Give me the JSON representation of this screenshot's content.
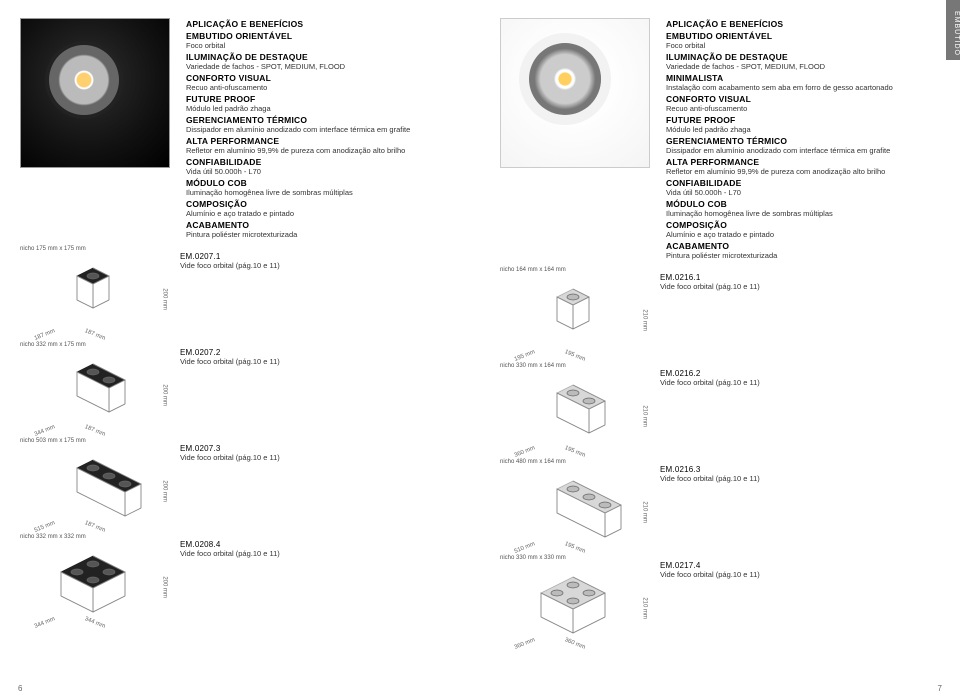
{
  "side_tab": "EMBUTIDO",
  "page_left_num": "6",
  "page_right_num": "7",
  "left": {
    "app_title": "APLICAÇÃO E BENEFÍCIOS",
    "specs": [
      {
        "h": "EMBUTIDO ORIENTÁVEL",
        "s": "Foco orbital"
      },
      {
        "h": "ILUMINAÇÃO DE DESTAQUE",
        "s": "Variedade de fachos - SPOT, MEDIUM, FLOOD"
      },
      {
        "h": "CONFORTO VISUAL",
        "s": "Recuo anti-ofuscamento"
      },
      {
        "h": "FUTURE PROOF",
        "s": "Módulo led padrão zhaga"
      },
      {
        "h": "GERENCIAMENTO TÉRMICO",
        "s": "Dissipador em alumínio anodizado com interface térmica em grafite"
      },
      {
        "h": "ALTA PERFORMANCE",
        "s": "Refletor em alumínio 99,9% de pureza com anodização alto brilho"
      },
      {
        "h": "CONFIABILIDADE",
        "s": "Vida útil 50.000h - L70"
      },
      {
        "h": "MÓDULO COB",
        "s": "Iluminação homogênea livre de sombras múltiplas"
      },
      {
        "h": "COMPOSIÇÃO",
        "s": "Alumínio e aço tratado e pintado"
      },
      {
        "h": "ACABAMENTO",
        "s": "Pintura poliéster microtexturizada"
      }
    ],
    "variants": [
      {
        "nicho": "nicho 175 mm x 175 mm",
        "code": "EM.0207.1",
        "note": "Vide foco orbital (pág.10 e 11)",
        "dv": "200 mm",
        "d1": "187 mm",
        "d2": "187 mm",
        "shape": "1x1",
        "style": "black"
      },
      {
        "nicho": "nicho 332 mm x 175 mm",
        "code": "EM.0207.2",
        "note": "Vide foco orbital (pág.10 e 11)",
        "dv": "200 mm",
        "d1": "344 mm",
        "d2": "187 mm",
        "shape": "2x1",
        "style": "black"
      },
      {
        "nicho": "nicho 503 mm x 175 mm",
        "code": "EM.0207.3",
        "note": "Vide foco orbital (pág.10 e 11)",
        "dv": "200 mm",
        "d1": "515 mm",
        "d2": "187 mm",
        "shape": "3x1",
        "style": "black"
      },
      {
        "nicho": "nicho 332 mm x 332 mm",
        "code": "EM.0208.4",
        "note": "Vide foco orbital (pág.10 e 11)",
        "dv": "200 mm",
        "d1": "344 mm",
        "d2": "344 mm",
        "shape": "2x2",
        "style": "black"
      }
    ]
  },
  "right": {
    "app_title": "APLICAÇÃO E BENEFÍCIOS",
    "specs": [
      {
        "h": "EMBUTIDO ORIENTÁVEL",
        "s": "Foco orbital"
      },
      {
        "h": "ILUMINAÇÃO DE DESTAQUE",
        "s": "Variedade de fachos - SPOT, MEDIUM, FLOOD"
      },
      {
        "h": "MINIMALISTA",
        "s": "Instalação com acabamento sem aba em forro de gesso acartonado"
      },
      {
        "h": "CONFORTO VISUAL",
        "s": "Recuo anti-ofuscamento"
      },
      {
        "h": "FUTURE PROOF",
        "s": "Módulo led padrão zhaga"
      },
      {
        "h": "GERENCIAMENTO TÉRMICO",
        "s": "Dissipador em alumínio anodizado com interface térmica em grafite"
      },
      {
        "h": "ALTA PERFORMANCE",
        "s": "Refletor em alumínio 99,9% de pureza com anodização alto brilho"
      },
      {
        "h": "CONFIABILIDADE",
        "s": "Vida útil 50.000h - L70"
      },
      {
        "h": "MÓDULO COB",
        "s": "Iluminação homogênea livre de sombras múltiplas"
      },
      {
        "h": "COMPOSIÇÃO",
        "s": "Alumínio e aço tratado e pintado"
      },
      {
        "h": "ACABAMENTO",
        "s": "Pintura poliéster microtexturizada"
      }
    ],
    "variants": [
      {
        "nicho": "nicho 164 mm x 164 mm",
        "code": "EM.0216.1",
        "note": "Vide foco orbital (pág.10 e 11)",
        "dv": "210 mm",
        "d1": "195 mm",
        "d2": "195 mm",
        "shape": "1x1",
        "style": "white"
      },
      {
        "nicho": "nicho 330 mm x 164 mm",
        "code": "EM.0216.2",
        "note": "Vide foco orbital (pág.10 e 11)",
        "dv": "210 mm",
        "d1": "360 mm",
        "d2": "195 mm",
        "shape": "2x1",
        "style": "white"
      },
      {
        "nicho": "nicho 480 mm x 164 mm",
        "code": "EM.0216.3",
        "note": "Vide foco orbital (pág.10 e 11)",
        "dv": "210 mm",
        "d1": "510 mm",
        "d2": "195 mm",
        "shape": "3x1",
        "style": "white"
      },
      {
        "nicho": "nicho 330 mm x 330 mm",
        "code": "EM.0217.4",
        "note": "Vide foco orbital (pág.10 e 11)",
        "dv": "210 mm",
        "d1": "360 mm",
        "d2": "360 mm",
        "shape": "2x2",
        "style": "white"
      }
    ]
  }
}
